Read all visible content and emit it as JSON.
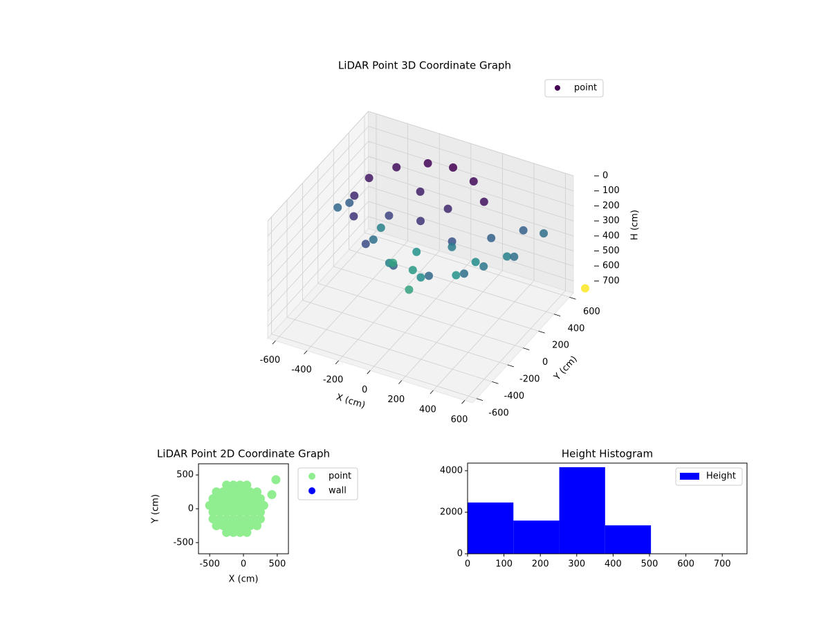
{
  "chart_data": [
    {
      "type": "scatter3d",
      "title": "LiDAR Point 3D Coordinate Graph",
      "xlabel": "X (cm)",
      "ylabel": "Y (cm)",
      "zlabel": "H (cm)",
      "xlim": [
        -650,
        650
      ],
      "ylim": [
        -650,
        650
      ],
      "zlim": [
        780,
        0
      ],
      "inverted_z": true,
      "xticks": [
        -600,
        -400,
        -200,
        0,
        200,
        400,
        600
      ],
      "yticks": [
        -600,
        -400,
        -200,
        0,
        200,
        400,
        600
      ],
      "zticks": [
        0,
        100,
        200,
        300,
        400,
        500,
        600,
        700
      ],
      "colormap": "viridis",
      "grid": true,
      "legend": "upper right",
      "series": [
        {
          "name": "point",
          "color": "#440154",
          "x": [
            -300,
            -150,
            0,
            150,
            280,
            -400,
            -420,
            -350,
            -200,
            0,
            200,
            350,
            400,
            350,
            -100,
            100,
            0,
            -200,
            200,
            -250,
            -100,
            100,
            250,
            -300,
            0,
            150,
            -50,
            300,
            -150,
            50,
            -500,
            -550,
            450,
            520,
            480,
            560,
            700
          ],
          "y": [
            300,
            400,
            420,
            380,
            250,
            150,
            0,
            -150,
            -300,
            -350,
            -300,
            -150,
            0,
            200,
            200,
            150,
            0,
            0,
            0,
            -100,
            -200,
            -200,
            -50,
            100,
            -100,
            100,
            50,
            100,
            -50,
            -250,
            100,
            50,
            200,
            150,
            350,
            450,
            700
          ],
          "values": [
            60,
            40,
            30,
            50,
            70,
            80,
            120,
            150,
            200,
            250,
            280,
            300,
            320,
            260,
            100,
            120,
            150,
            180,
            220,
            300,
            350,
            380,
            400,
            350,
            420,
            330,
            400,
            380,
            450,
            450,
            250,
            270,
            350,
            300,
            250,
            300,
            760
          ]
        }
      ]
    },
    {
      "type": "scatter",
      "title": "LiDAR Point 2D Coordinate Graph",
      "xlabel": "X (cm)",
      "ylabel": "Y (cm)",
      "xlim": [
        -665,
        665
      ],
      "ylim": [
        -665,
        665
      ],
      "xticks": [
        -500,
        0,
        500
      ],
      "yticks": [
        -500,
        0,
        500
      ],
      "legend": "outside right",
      "series": [
        {
          "name": "point",
          "color": "#90ee90",
          "x": [
            -250,
            -150,
            -50,
            50,
            -400,
            -300,
            -200,
            -100,
            0,
            100,
            200,
            -450,
            -350,
            -250,
            -150,
            -50,
            50,
            150,
            250,
            -500,
            -400,
            -300,
            -200,
            -100,
            0,
            100,
            200,
            300,
            -450,
            -350,
            -250,
            -150,
            -50,
            50,
            150,
            250,
            -450,
            -350,
            -250,
            -150,
            -50,
            50,
            150,
            250,
            -400,
            -300,
            -200,
            -100,
            0,
            100,
            200,
            -250,
            -150,
            -50,
            50,
            480,
            420
          ],
          "values": [
            350,
            350,
            350,
            350,
            250,
            250,
            250,
            250,
            250,
            250,
            250,
            150,
            150,
            150,
            150,
            150,
            150,
            150,
            150,
            50,
            50,
            50,
            50,
            50,
            50,
            50,
            50,
            50,
            -50,
            -50,
            -50,
            -50,
            -50,
            -50,
            -50,
            -50,
            -150,
            -150,
            -150,
            -150,
            -150,
            -150,
            -150,
            -150,
            -250,
            -250,
            -250,
            -250,
            -250,
            -250,
            -250,
            -350,
            -350,
            -350,
            -350,
            430,
            210
          ]
        },
        {
          "name": "wall",
          "color": "#0000ff",
          "x": [],
          "values": []
        }
      ]
    },
    {
      "type": "histogram",
      "title": "Height Histogram",
      "legend": "upper right",
      "series": [
        {
          "name": "Height",
          "color": "#0000ff",
          "bins": [
            0,
            126,
            252,
            378,
            504,
            630,
            756
          ],
          "values": [
            2470,
            1600,
            4170,
            1370,
            0,
            3
          ]
        }
      ],
      "xlim": [
        0,
        768
      ],
      "ylim": [
        0,
        4367
      ],
      "xticks": [
        0,
        100,
        200,
        300,
        400,
        500,
        600,
        700
      ],
      "yticks": [
        0,
        2000,
        4000
      ]
    }
  ]
}
